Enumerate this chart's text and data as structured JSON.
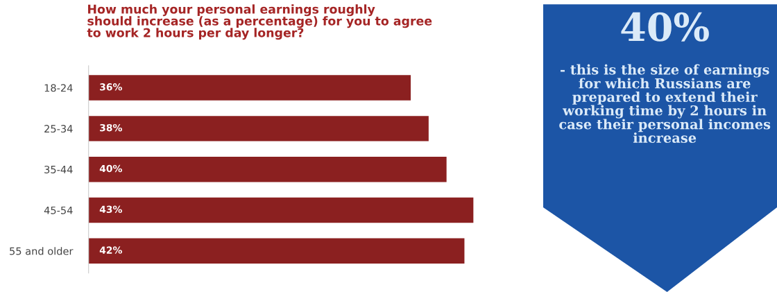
{
  "chart_data": [
    {
      "type": "bar",
      "orientation": "horizontal",
      "title": "How much your personal earnings roughly\nshould increase (as a percentage) for you to agree\nto work 2 hours per day longer?",
      "categories": [
        "18-24",
        "25-34",
        "35-44",
        "45-54",
        "55 and older"
      ],
      "values": [
        36,
        38,
        40,
        43,
        42
      ],
      "value_labels": [
        "36%",
        "38%",
        "40%",
        "43%",
        "42%"
      ],
      "color": "#8b2020",
      "grid": false,
      "legend": false
    },
    {
      "type": "other",
      "color": "#1c55a6",
      "title": "40%",
      "annotations": [
        "- this is the size of earnings for which Russians are prepared to extend their working time by 2 hours in case their personal incomes increase"
      ]
    }
  ]
}
